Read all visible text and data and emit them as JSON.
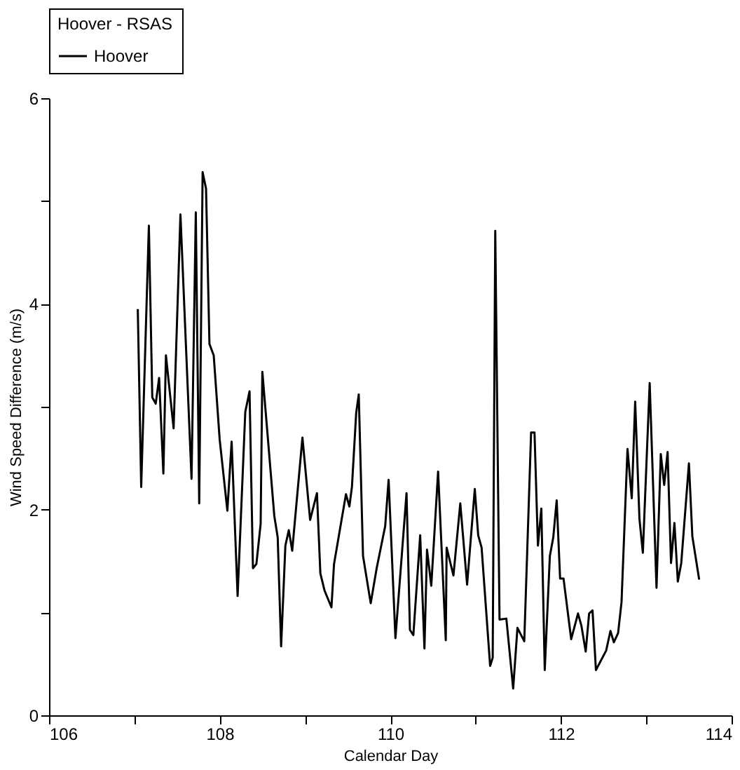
{
  "chart_data": {
    "type": "line",
    "xlabel": "Calendar Day",
    "ylabel": "Wind Speed Difference (m/s)",
    "legend_title": "Hoover - RSAS",
    "legend": "top",
    "grid": false,
    "marker": "none",
    "line_style": "solid",
    "xlim": [
      106,
      114
    ],
    "ylim": [
      0,
      6
    ],
    "xticks": [
      106,
      {
        "value": 107,
        "label": null
      },
      108,
      {
        "value": 109,
        "label": null
      },
      110,
      {
        "value": 111,
        "label": null
      },
      112,
      {
        "value": 113,
        "label": null
      },
      114
    ],
    "yticks": [
      0,
      {
        "value": 1,
        "label": null
      },
      2,
      {
        "value": 3,
        "label": null
      },
      4,
      {
        "value": 5,
        "label": null
      },
      6
    ],
    "x": [
      107.04,
      107.08,
      107.17,
      107.21,
      107.25,
      107.29,
      107.34,
      107.37,
      107.46,
      107.54,
      107.67,
      107.72,
      107.76,
      107.8,
      107.84,
      107.88,
      107.93,
      108.0,
      108.09,
      108.14,
      108.21,
      108.3,
      108.35,
      108.39,
      108.43,
      108.48,
      108.5,
      108.64,
      108.68,
      108.72,
      108.77,
      108.81,
      108.85,
      108.97,
      109.06,
      109.14,
      109.18,
      109.23,
      109.31,
      109.34,
      109.48,
      109.52,
      109.55,
      109.6,
      109.63,
      109.68,
      109.77,
      109.84,
      109.94,
      109.98,
      110.06,
      110.19,
      110.23,
      110.27,
      110.35,
      110.4,
      110.43,
      110.48,
      110.56,
      110.65,
      110.66,
      110.74,
      110.82,
      110.9,
      110.99,
      111.03,
      111.07,
      111.17,
      111.2,
      111.23,
      111.28,
      111.36,
      111.44,
      111.49,
      111.57,
      111.65,
      111.69,
      111.73,
      111.77,
      111.81,
      111.87,
      111.91,
      111.95,
      111.99,
      112.03,
      112.12,
      112.2,
      112.24,
      112.29,
      112.33,
      112.37,
      112.41,
      112.53,
      112.58,
      112.62,
      112.67,
      112.71,
      112.78,
      112.83,
      112.87,
      112.92,
      112.96,
      113.04,
      113.12,
      113.17,
      113.21,
      113.25,
      113.29,
      113.33,
      113.37,
      113.41,
      113.5,
      113.54,
      113.62
    ],
    "series": [
      {
        "name": "Hoover",
        "color": "#000000",
        "values": [
          3.95,
          2.22,
          4.76,
          3.09,
          3.03,
          3.28,
          2.35,
          3.5,
          2.79,
          4.87,
          2.3,
          4.89,
          2.06,
          5.28,
          5.12,
          3.61,
          3.5,
          2.68,
          1.99,
          2.66,
          1.16,
          2.95,
          3.15,
          1.43,
          1.47,
          1.86,
          3.34,
          1.94,
          1.73,
          0.67,
          1.65,
          1.8,
          1.6,
          2.7,
          1.9,
          2.16,
          1.38,
          1.21,
          1.05,
          1.47,
          2.15,
          2.03,
          2.22,
          2.94,
          3.12,
          1.55,
          1.09,
          1.43,
          1.84,
          2.29,
          0.75,
          2.16,
          0.83,
          0.78,
          1.75,
          0.65,
          1.61,
          1.26,
          2.37,
          0.73,
          1.63,
          1.36,
          2.06,
          1.27,
          2.2,
          1.75,
          1.63,
          0.48,
          0.56,
          4.71,
          0.93,
          0.94,
          0.26,
          0.85,
          0.72,
          2.75,
          2.75,
          1.65,
          2.01,
          0.44,
          1.55,
          1.73,
          2.09,
          1.33,
          1.33,
          0.74,
          0.99,
          0.87,
          0.62,
          0.99,
          1.02,
          0.44,
          0.63,
          0.82,
          0.71,
          0.8,
          1.1,
          2.59,
          2.11,
          3.05,
          1.91,
          1.58,
          3.23,
          1.24,
          2.54,
          2.24,
          2.56,
          1.48,
          1.87,
          1.3,
          1.48,
          2.45,
          1.74,
          1.32
        ]
      }
    ]
  }
}
